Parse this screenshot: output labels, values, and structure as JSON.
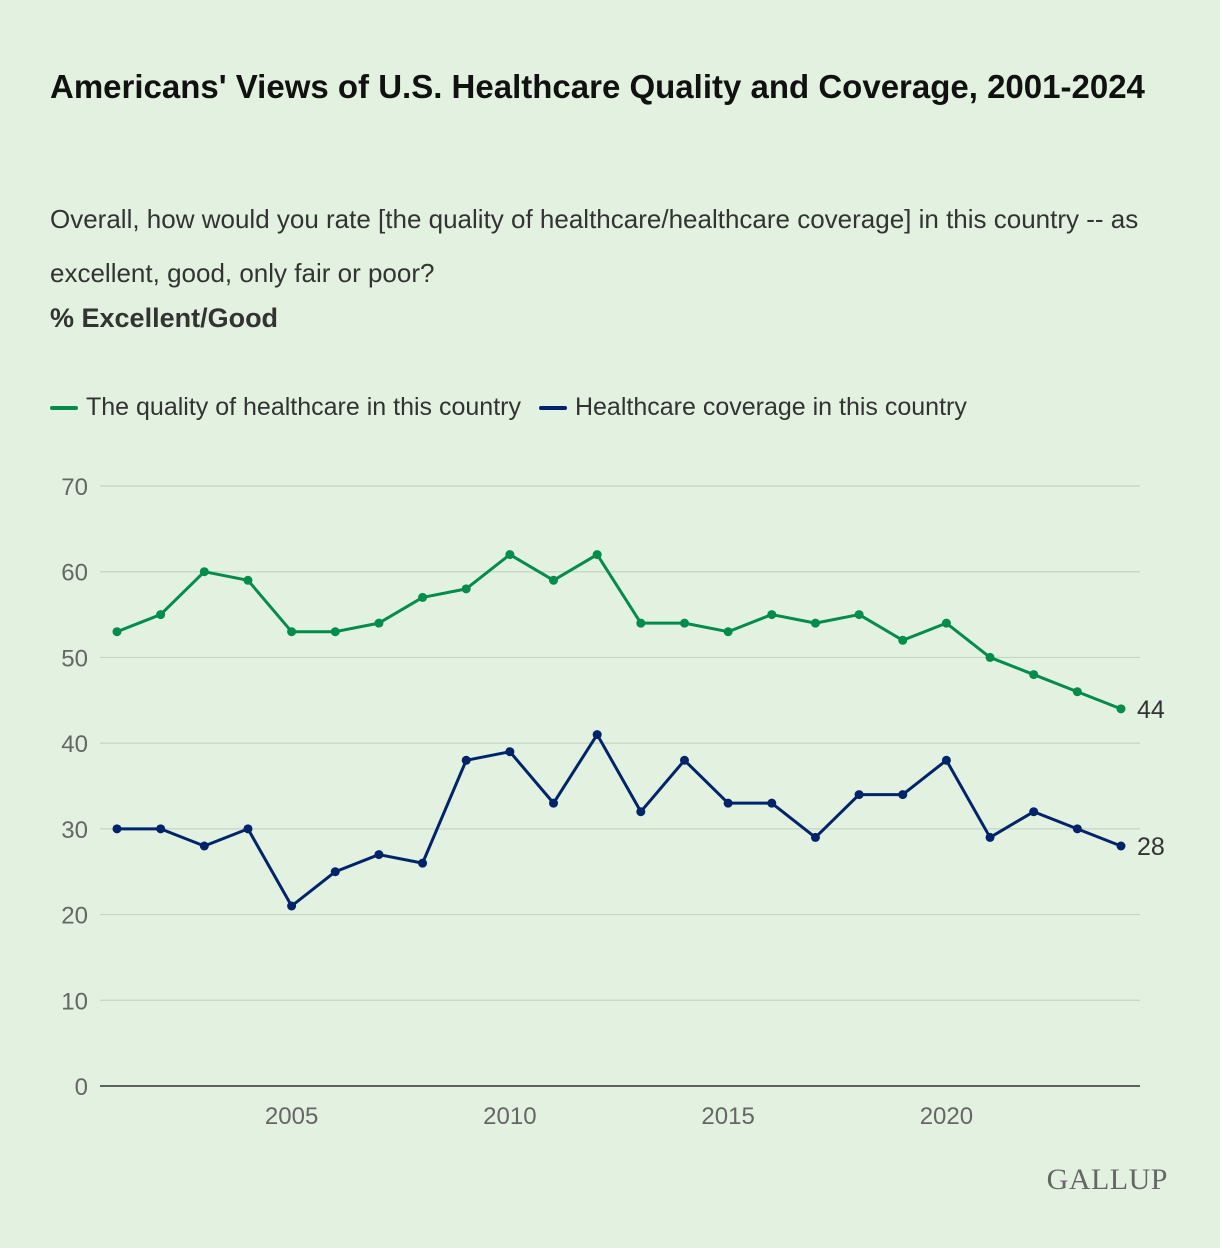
{
  "chart_data": {
    "type": "line",
    "title": "Americans' Views of U.S. Healthcare Quality and Coverage, 2001-2024",
    "subtitle": "Overall, how would you rate [the quality of healthcare/healthcare coverage] in this country -- as excellent, good, only fair or poor?",
    "measure_label": "% Excellent/Good",
    "x": [
      2001,
      2002,
      2003,
      2004,
      2005,
      2006,
      2007,
      2008,
      2009,
      2010,
      2011,
      2012,
      2013,
      2014,
      2015,
      2016,
      2017,
      2018,
      2019,
      2020,
      2021,
      2022,
      2023,
      2024
    ],
    "xticks": [
      "2005",
      "2010",
      "2015",
      "2020"
    ],
    "yticks": [
      "0",
      "10",
      "20",
      "30",
      "40",
      "50",
      "60",
      "70"
    ],
    "ylim": [
      0,
      70
    ],
    "grid": true,
    "legend_position": "top-left",
    "series": [
      {
        "name": "The quality of healthcare in this country",
        "color": "#008c4b",
        "end_label": "44",
        "values": [
          53,
          55,
          60,
          59,
          53,
          53,
          54,
          57,
          58,
          62,
          59,
          62,
          54,
          54,
          53,
          55,
          54,
          55,
          52,
          54,
          50,
          48,
          46,
          44
        ]
      },
      {
        "name": "Healthcare coverage in this country",
        "color": "#002469",
        "end_label": "28",
        "values": [
          30,
          30,
          28,
          30,
          21,
          25,
          27,
          26,
          38,
          39,
          33,
          41,
          32,
          38,
          33,
          33,
          29,
          34,
          34,
          38,
          29,
          32,
          30,
          28
        ]
      }
    ]
  },
  "logo": "GALLUP"
}
